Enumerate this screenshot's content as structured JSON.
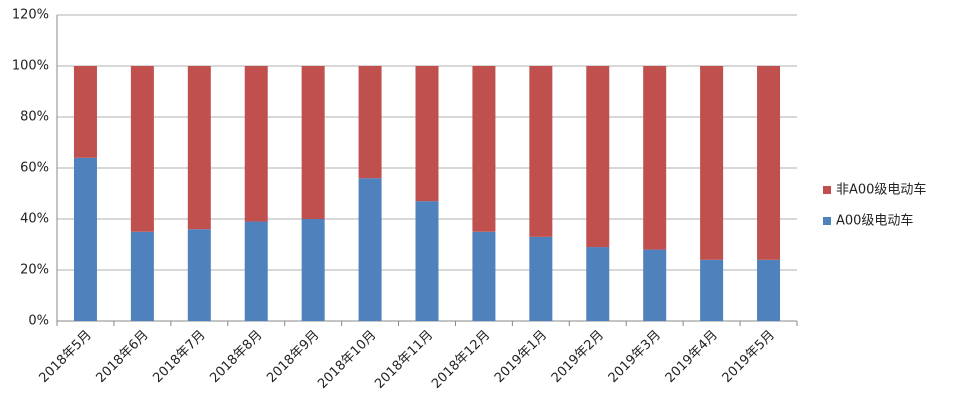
{
  "chart_data": {
    "type": "stacked_bar",
    "categories": [
      "2018年5月",
      "2018年6月",
      "2018年7月",
      "2018年8月",
      "2018年9月",
      "2018年10月",
      "2018年11月",
      "2018年12月",
      "2019年1月",
      "2019年2月",
      "2019年3月",
      "2019年4月",
      "2019年5月"
    ],
    "series": [
      {
        "name": "A00级电动车",
        "color": "#4f81bd",
        "values": [
          64,
          35,
          36,
          39,
          40,
          56,
          47,
          35,
          33,
          29,
          28,
          24,
          24
        ]
      },
      {
        "name": "非A00级电动车",
        "color": "#c0504d",
        "values": [
          36,
          65,
          64,
          61,
          60,
          44,
          53,
          65,
          67,
          71,
          72,
          76,
          76
        ]
      }
    ],
    "ylim": [
      0,
      120
    ],
    "yticks": [
      {
        "value": 0,
        "label": "0%"
      },
      {
        "value": 20,
        "label": "20%"
      },
      {
        "value": 40,
        "label": "40%"
      },
      {
        "value": 60,
        "label": "60%"
      },
      {
        "value": 80,
        "label": "80%"
      },
      {
        "value": 100,
        "label": "100%"
      },
      {
        "value": 120,
        "label": "120%"
      }
    ],
    "grid": true,
    "legend": "right"
  }
}
